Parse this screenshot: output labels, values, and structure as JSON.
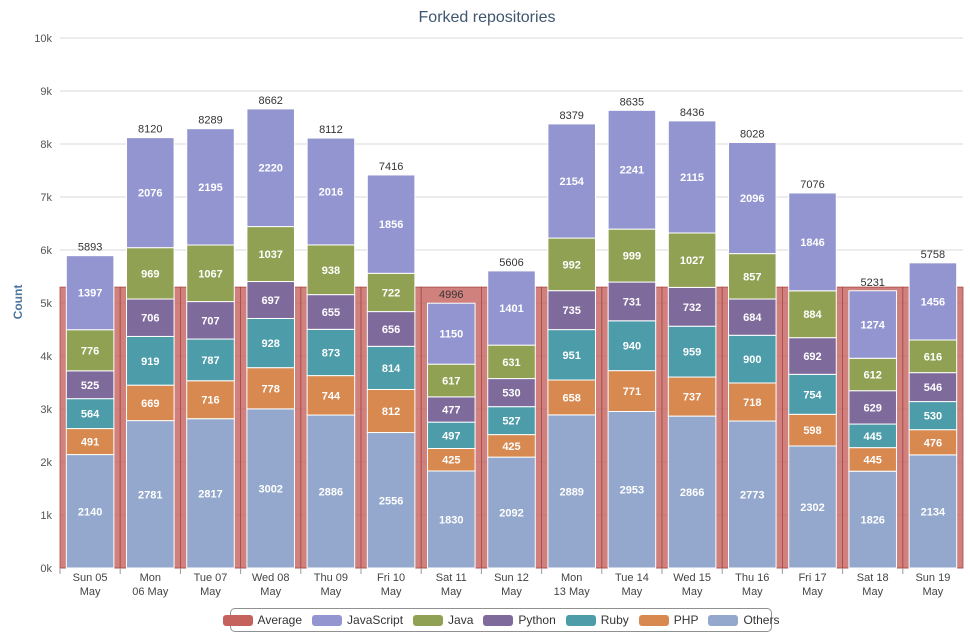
{
  "chart_data": {
    "type": "bar",
    "title": "Forked repositories",
    "ylabel": "Count",
    "ylim": [
      0,
      10000
    ],
    "yticks": [
      "0k",
      "1k",
      "2k",
      "3k",
      "4k",
      "5k",
      "6k",
      "7k",
      "8k",
      "9k",
      "10k"
    ],
    "categories": [
      [
        "Sun 05",
        "May"
      ],
      [
        "Mon",
        "06 May"
      ],
      [
        "Tue 07",
        "May"
      ],
      [
        "Wed 08",
        "May"
      ],
      [
        "Thu 09",
        "May"
      ],
      [
        "Fri 10",
        "May"
      ],
      [
        "Sat 11",
        "May"
      ],
      [
        "Sun 12",
        "May"
      ],
      [
        "Mon",
        "13 May"
      ],
      [
        "Tue 14",
        "May"
      ],
      [
        "Wed 15",
        "May"
      ],
      [
        "Thu 16",
        "May"
      ],
      [
        "Fri 17",
        "May"
      ],
      [
        "Sat 18",
        "May"
      ],
      [
        "Sun 19",
        "May"
      ]
    ],
    "totals": [
      5893,
      8120,
      8289,
      8662,
      8112,
      7416,
      4996,
      5606,
      8379,
      8635,
      8436,
      8028,
      7076,
      5231,
      5758
    ],
    "average": 5300,
    "series": [
      {
        "name": "Others",
        "color": "#93a8cc",
        "values": [
          2140,
          2781,
          2817,
          3002,
          2886,
          2556,
          1830,
          2092,
          2889,
          2953,
          2866,
          2773,
          2302,
          1826,
          2134
        ]
      },
      {
        "name": "PHP",
        "color": "#d7894f",
        "values": [
          491,
          669,
          716,
          778,
          744,
          812,
          425,
          425,
          658,
          771,
          737,
          718,
          598,
          445,
          476
        ]
      },
      {
        "name": "Ruby",
        "color": "#4c9caa",
        "values": [
          564,
          919,
          787,
          928,
          873,
          814,
          497,
          527,
          951,
          940,
          959,
          900,
          754,
          445,
          530
        ]
      },
      {
        "name": "Python",
        "color": "#7f6a9c",
        "values": [
          525,
          706,
          707,
          697,
          655,
          656,
          477,
          530,
          735,
          731,
          732,
          684,
          692,
          629,
          546
        ]
      },
      {
        "name": "Java",
        "color": "#91a153",
        "values": [
          776,
          969,
          1067,
          1037,
          938,
          722,
          617,
          631,
          992,
          999,
          1027,
          857,
          884,
          612,
          616
        ]
      },
      {
        "name": "JavaScript",
        "color": "#9295cf",
        "values": [
          1397,
          2076,
          2195,
          2220,
          2016,
          1856,
          1150,
          1401,
          2154,
          2241,
          2115,
          2096,
          1846,
          1274,
          1456
        ]
      }
    ],
    "legend": [
      {
        "name": "Average",
        "color": "#c6625d"
      },
      {
        "name": "JavaScript",
        "color": "#9295cf"
      },
      {
        "name": "Java",
        "color": "#91a153"
      },
      {
        "name": "Python",
        "color": "#7f6a9c"
      },
      {
        "name": "Ruby",
        "color": "#4c9caa"
      },
      {
        "name": "PHP",
        "color": "#d7894f"
      },
      {
        "name": "Others",
        "color": "#93a8cc"
      }
    ],
    "legend_position": "bottom-center",
    "grid": true
  }
}
